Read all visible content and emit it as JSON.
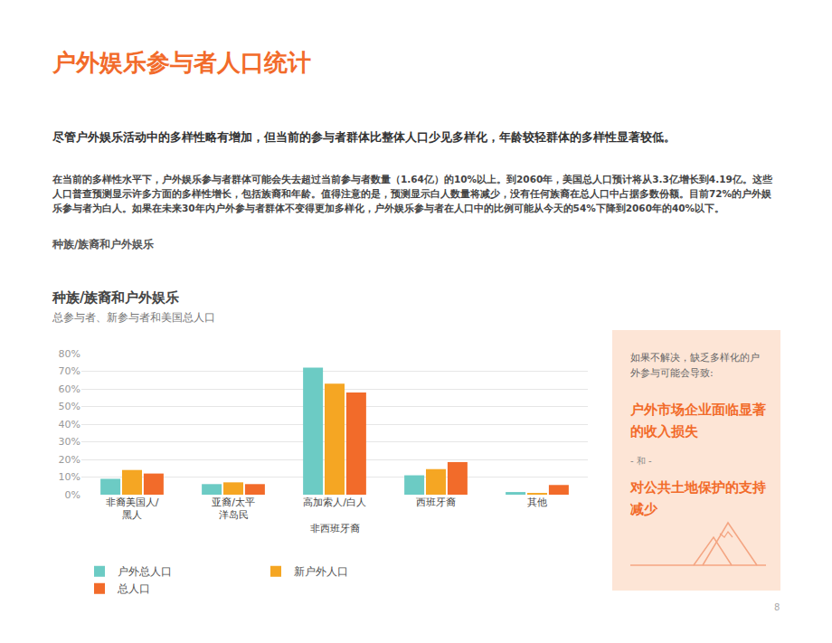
{
  "page": {
    "title": "户外娱乐参与者人口统计",
    "lead": "尽管户外娱乐活动中的多样性略有增加，但当前的参与者群体比整体人口少见多样化，年龄较轻群体的多样性显著较低。",
    "body": "在当前的多样性水平下，户外娱乐参与者群体可能会失去超过当前参与者数量（1.64亿）的10%以上。到2060年，美国总人口预计将从3.3亿增长到4.19亿。这些人口普查预测显示许多方面的多样性增长，包括族裔和年龄。值得注意的是，预测显示白人数量将减少，没有任何族裔在总人口中占据多数份额。目前72%的户外娱乐参与者为白人。如果在未来30年内户外参与者群体不变得更加多样化，户外娱乐参与者在人口中的比例可能从今天的54%下降到2060年的40%以下。",
    "section_label": "种族/族裔和户外娱乐",
    "page_number": "8"
  },
  "sidebar": {
    "intro": "如果不解决，缺乏多样化的户外参与可能会导致:",
    "point1": "户外市场企业面临显著的收入损失",
    "separator": "- 和 -",
    "point2": "对公共土地保护的支持减少"
  },
  "chart_data": {
    "type": "bar",
    "title": "种族/族裔和户外娱乐",
    "subtitle": "总参与者、新参与者和美国总人口",
    "categories": [
      "非裔美国人/\n黑人",
      "亚裔/太平\n洋岛民",
      "高加索人/白人\n\n非西班牙裔",
      "西班牙裔",
      "其他"
    ],
    "series": [
      {
        "name": "户外总人口",
        "color": "#6ccbc4",
        "values": [
          9,
          6,
          72,
          11,
          1.5
        ]
      },
      {
        "name": "新户外人口",
        "color": "#f5a623",
        "values": [
          14,
          7,
          63,
          14.5,
          1
        ]
      },
      {
        "name": "总人口",
        "color": "#f26b2a",
        "values": [
          12,
          6,
          58,
          18.5,
          5.5
        ]
      }
    ],
    "ylim": [
      0,
      80
    ],
    "yticks": [
      {
        "value": 0,
        "label": "0%"
      },
      {
        "value": 10,
        "label": "10%"
      },
      {
        "value": 20,
        "label": "20%"
      },
      {
        "value": 30,
        "label": "30%"
      },
      {
        "value": 40,
        "label": "40%"
      },
      {
        "value": 50,
        "label": "50%"
      },
      {
        "value": 60,
        "label": "60%"
      },
      {
        "value": 70,
        "label": "70%"
      },
      {
        "value": 80,
        "label": "80%"
      }
    ],
    "grid": true,
    "legend": "bottom",
    "data_labels": false
  }
}
